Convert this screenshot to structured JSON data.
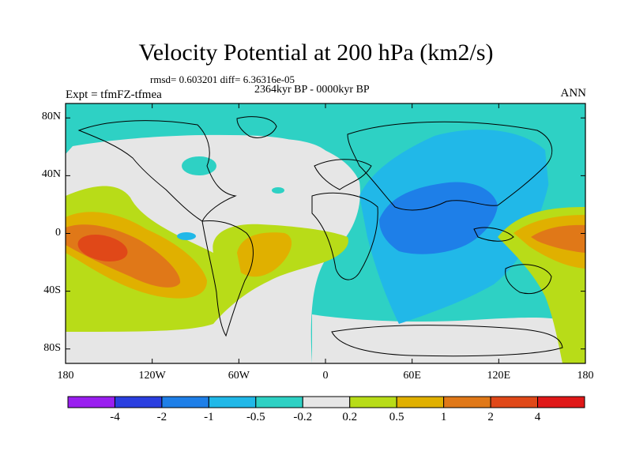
{
  "chart_data": {
    "type": "heatmap",
    "title": "Velocity Potential at 200 hPa (km2/s)",
    "stats_line": "rmsd= 0.603201 diff= 6.36316e-05",
    "period_line": "2364kyr BP - 0000kyr BP",
    "experiment_label": "Expt = tfmFZ-tfmea",
    "season_label": "ANN",
    "x_axis": {
      "range": [
        -180,
        180
      ],
      "ticks": [
        -180,
        -120,
        -60,
        0,
        60,
        120,
        180
      ],
      "tick_labels": [
        "180",
        "120W",
        "60W",
        "0",
        "60E",
        "120E",
        "180"
      ]
    },
    "y_axis": {
      "range": [
        -90,
        90
      ],
      "ticks": [
        80,
        40,
        0,
        -40,
        -80
      ],
      "tick_labels": [
        "80N",
        "40N",
        "0",
        "40S",
        "80S"
      ]
    },
    "colorbar": {
      "levels": [
        "-4",
        "-2",
        "-1",
        "-0.5",
        "-0.2",
        "0.2",
        "0.5",
        "1",
        "2",
        "4"
      ],
      "colors": [
        "#9a1ff0",
        "#2a3fe0",
        "#1e7fe8",
        "#21b8e8",
        "#2ed1c4",
        "#e6e6e6",
        "#b8dc18",
        "#e0b000",
        "#e07818",
        "#e04818",
        "#e01818"
      ]
    },
    "field_regions": [
      {
        "label": "background",
        "level_index": 4
      },
      {
        "label": "north-atlantic-europe-neutral",
        "level_index": 5
      },
      {
        "label": "eastern-pacific-positive",
        "level_index": 6
      },
      {
        "label": "eastern-pacific-positive-2",
        "level_index": 7
      },
      {
        "label": "eastern-pacific-positive-3",
        "level_index": 8
      },
      {
        "label": "eastern-pacific-maximum",
        "level_index": 9
      },
      {
        "label": "atlantic-positive",
        "level_index": 6
      },
      {
        "label": "atlantic-positive-2",
        "level_index": 7
      },
      {
        "label": "southern-ocean-neutral",
        "level_index": 5
      },
      {
        "label": "asia-negative",
        "level_index": 3
      },
      {
        "label": "asia-negative-core",
        "level_index": 2
      },
      {
        "label": "east-asia-neutral",
        "level_index": 4
      },
      {
        "label": "west-pacific-positive",
        "level_index": 6
      },
      {
        "label": "west-pacific-positive-2",
        "level_index": 7
      },
      {
        "label": "west-pacific-positive-3",
        "level_index": 8
      },
      {
        "label": "north-america-neutral",
        "level_index": 5
      }
    ]
  }
}
